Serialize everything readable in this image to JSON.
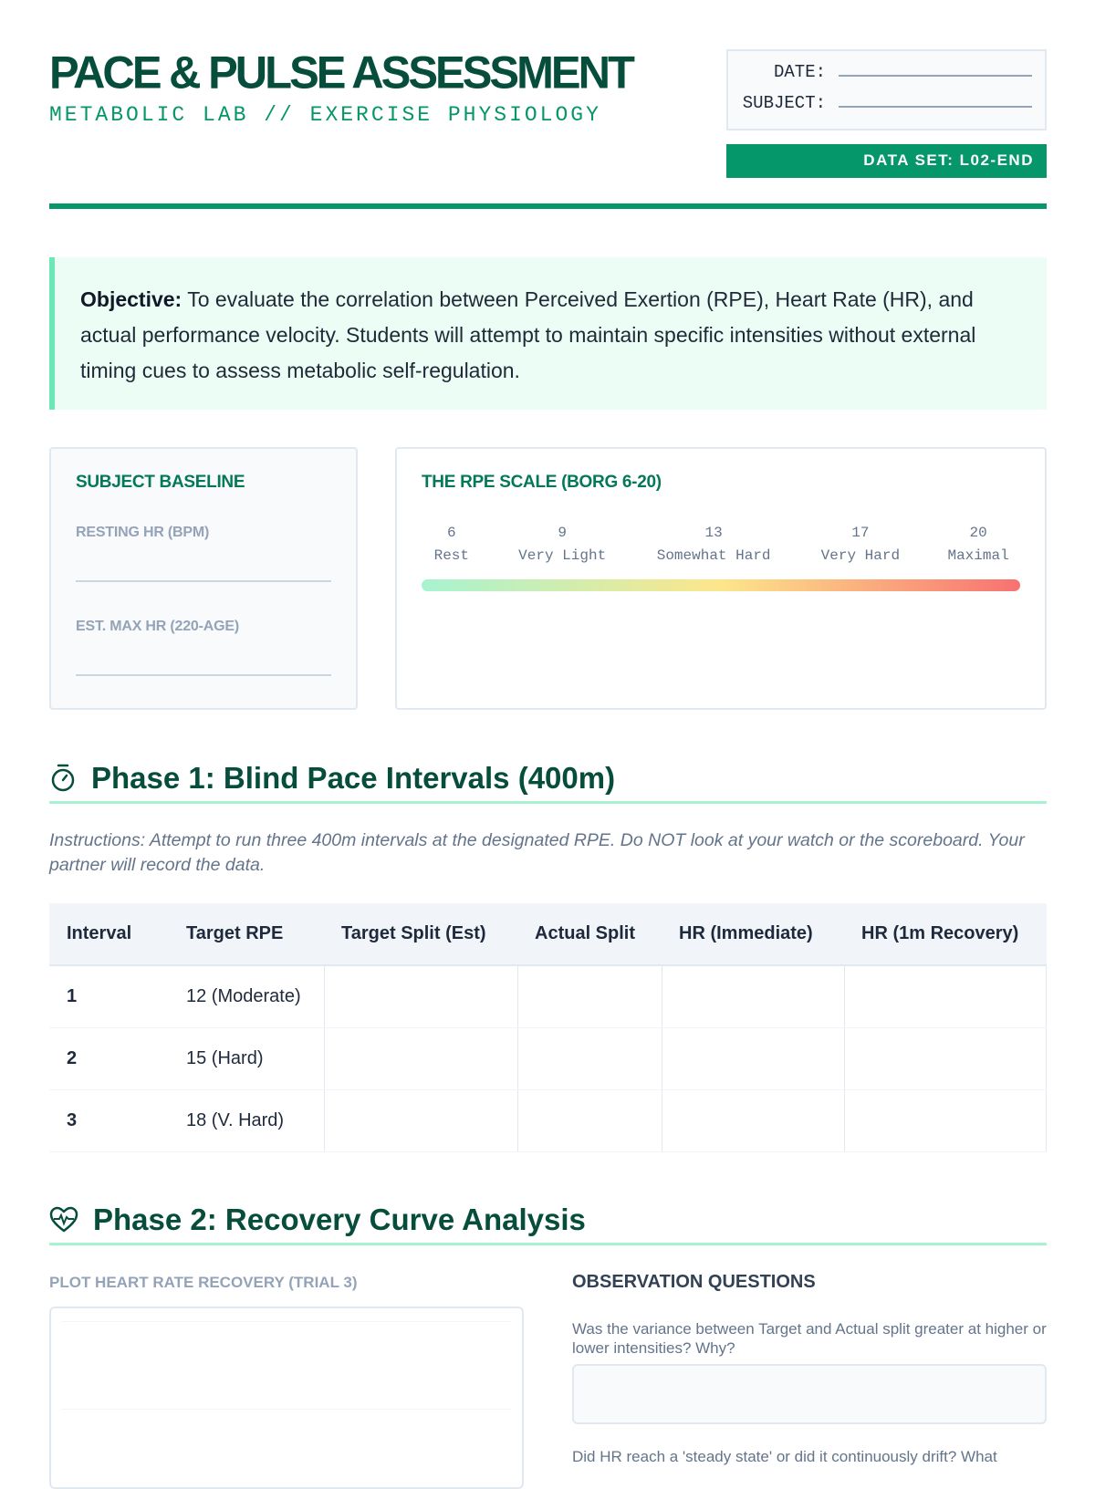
{
  "header": {
    "title": "PACE & PULSE ASSESSMENT",
    "subtitle": "METABOLIC LAB // EXERCISE PHYSIOLOGY",
    "date_label": "DATE:",
    "subject_label": "SUBJECT:",
    "dataset": "DATA SET: L02-END"
  },
  "colors": {
    "brand": "#059669",
    "dark": "#064e3b",
    "accent_light": "#a7f3d0"
  },
  "objective": {
    "label": "Objective:",
    "text": " To evaluate the correlation between Perceived Exertion (RPE), Heart Rate (HR), and actual performance velocity. Students will attempt to maintain specific intensities without external timing cues to assess metabolic self-regulation."
  },
  "baseline": {
    "title": "SUBJECT BASELINE",
    "fields": [
      {
        "label": "RESTING HR (BPM)"
      },
      {
        "label": "EST. MAX HR (220-AGE)"
      }
    ]
  },
  "rpe": {
    "title": "THE RPE SCALE (BORG 6-20)",
    "items": [
      {
        "value": "6",
        "label": "Rest"
      },
      {
        "value": "9",
        "label": "Very Light"
      },
      {
        "value": "13",
        "label": "Somewhat Hard"
      },
      {
        "value": "17",
        "label": "Very Hard"
      },
      {
        "value": "20",
        "label": "Maximal"
      }
    ]
  },
  "phase1": {
    "icon": "stopwatch-icon",
    "title": "Phase 1: Blind Pace Intervals (400m)",
    "instructions": "Instructions: Attempt to run three 400m intervals at the designated RPE. Do NOT look at your watch or the scoreboard. Your partner will record the data.",
    "columns": [
      "Interval",
      "Target RPE",
      "Target Split (Est)",
      "Actual Split",
      "HR (Immediate)",
      "HR (1m Recovery)"
    ],
    "rows": [
      {
        "interval": "1",
        "rpe": "12 (Moderate)"
      },
      {
        "interval": "2",
        "rpe": "15 (Hard)"
      },
      {
        "interval": "3",
        "rpe": "18 (V. Hard)"
      }
    ]
  },
  "phase2": {
    "icon": "heart-pulse-icon",
    "title": "Phase 2: Recovery Curve Analysis",
    "plot_label": "PLOT HEART RATE RECOVERY (TRIAL 3)",
    "obs_title": "OBSERVATION QUESTIONS",
    "questions": [
      "Was the variance between Target and Actual split greater at higher or lower intensities? Why?",
      "Did HR reach a 'steady state' or did it continuously drift? What"
    ]
  }
}
